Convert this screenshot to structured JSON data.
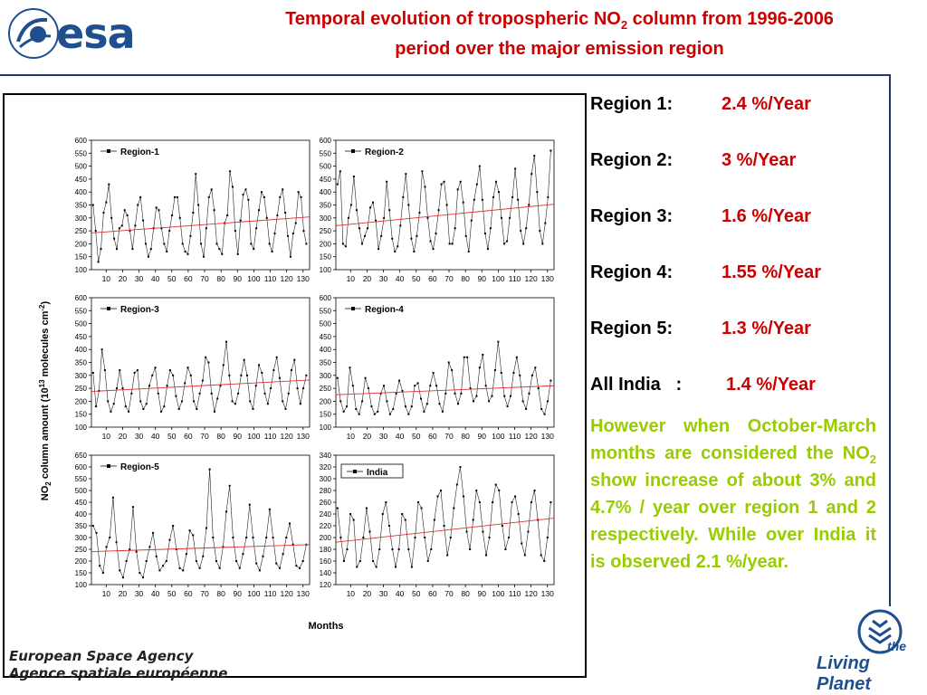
{
  "header": {
    "logo_text": "esa",
    "title_line1_a": "Temporal evolution of tropospheric NO",
    "title_line1_sub": "2",
    "title_line1_b": " column from 1996-2006",
    "title_line2": "period over the major emission region"
  },
  "figure": {
    "ylabel_a": "NO",
    "ylabel_sub": "2",
    "ylabel_b": " column amount (10",
    "ylabel_sup": "13",
    "ylabel_c": " molecules cm",
    "ylabel_sup2": "-2",
    "ylabel_d": ")",
    "xlabel": "Months"
  },
  "chart_data": [
    {
      "type": "line",
      "title": "",
      "legend": "Region-1",
      "x_ticks": [
        10,
        20,
        30,
        40,
        50,
        60,
        70,
        80,
        90,
        100,
        110,
        120,
        130
      ],
      "ylim": [
        100,
        600
      ],
      "y_ticks": [
        100,
        150,
        200,
        250,
        300,
        350,
        400,
        450,
        500,
        550,
        600
      ],
      "series": [
        {
          "name": "Region-1",
          "values": [
            350,
            250,
            130,
            180,
            320,
            360,
            430,
            300,
            220,
            180,
            260,
            270,
            330,
            310,
            250,
            180,
            270,
            350,
            380,
            290,
            200,
            150,
            180,
            260,
            340,
            330,
            260,
            200,
            170,
            250,
            310,
            380,
            380,
            300,
            200,
            170,
            160,
            230,
            320,
            470,
            350,
            200,
            150,
            260,
            380,
            410,
            330,
            200,
            180,
            160,
            280,
            310,
            480,
            420,
            250,
            160,
            290,
            390,
            410,
            370,
            200,
            180,
            260,
            330,
            400,
            380,
            300,
            200,
            170,
            240,
            310,
            380,
            410,
            320,
            230,
            150,
            240,
            280,
            400,
            380,
            250,
            200
          ]
        },
        {
          "name": "trend",
          "values": [
            242,
            304
          ]
        }
      ]
    },
    {
      "type": "line",
      "title": "",
      "legend": "Region-2",
      "x_ticks": [
        10,
        20,
        30,
        40,
        50,
        60,
        70,
        80,
        90,
        100,
        110,
        120,
        130
      ],
      "ylim": [
        100,
        600
      ],
      "y_ticks": [
        100,
        150,
        200,
        250,
        300,
        350,
        400,
        450,
        500,
        550,
        600
      ],
      "series": [
        {
          "name": "Region-2",
          "values": [
            430,
            480,
            200,
            190,
            300,
            350,
            460,
            330,
            260,
            200,
            230,
            260,
            340,
            360,
            290,
            180,
            230,
            300,
            440,
            330,
            220,
            170,
            190,
            270,
            380,
            470,
            350,
            220,
            170,
            230,
            320,
            480,
            420,
            300,
            210,
            180,
            240,
            330,
            430,
            440,
            350,
            200,
            200,
            260,
            410,
            440,
            360,
            230,
            170,
            290,
            370,
            430,
            500,
            370,
            240,
            180,
            260,
            380,
            440,
            400,
            300,
            200,
            210,
            300,
            380,
            490,
            370,
            250,
            200,
            260,
            350,
            470,
            540,
            400,
            250,
            200,
            280,
            380,
            560
          ]
        },
        {
          "name": "trend",
          "values": [
            270,
            353
          ]
        }
      ]
    },
    {
      "type": "line",
      "title": "",
      "legend": "Region-3",
      "x_ticks": [
        10,
        20,
        30,
        40,
        50,
        60,
        70,
        80,
        90,
        100,
        110,
        120,
        130
      ],
      "ylim": [
        100,
        600
      ],
      "y_ticks": [
        100,
        150,
        200,
        250,
        300,
        350,
        400,
        450,
        500,
        550,
        600
      ],
      "series": [
        {
          "name": "Region-3",
          "values": [
            310,
            180,
            240,
            400,
            320,
            200,
            160,
            190,
            250,
            320,
            250,
            180,
            160,
            230,
            310,
            320,
            200,
            170,
            190,
            260,
            300,
            330,
            230,
            160,
            180,
            260,
            320,
            300,
            220,
            170,
            200,
            270,
            330,
            300,
            200,
            170,
            230,
            280,
            370,
            350,
            230,
            160,
            210,
            260,
            340,
            430,
            300,
            200,
            190,
            230,
            300,
            360,
            300,
            200,
            170,
            260,
            340,
            310,
            230,
            190,
            250,
            320,
            370,
            290,
            200,
            170,
            230,
            320,
            360,
            250,
            190,
            250,
            300
          ]
        },
        {
          "name": "trend",
          "values": [
            238,
            282
          ]
        }
      ]
    },
    {
      "type": "line",
      "title": "",
      "legend": "Region-4",
      "x_ticks": [
        10,
        20,
        30,
        40,
        50,
        60,
        70,
        80,
        90,
        100,
        110,
        120,
        130
      ],
      "ylim": [
        100,
        600
      ],
      "y_ticks": [
        100,
        150,
        200,
        250,
        300,
        350,
        400,
        450,
        500,
        550,
        600
      ],
      "series": [
        {
          "name": "Region-4",
          "values": [
            290,
            200,
            160,
            180,
            330,
            260,
            170,
            150,
            200,
            290,
            250,
            180,
            150,
            160,
            230,
            260,
            200,
            150,
            170,
            230,
            280,
            240,
            180,
            150,
            180,
            260,
            270,
            210,
            160,
            190,
            260,
            310,
            260,
            190,
            160,
            230,
            350,
            320,
            230,
            190,
            230,
            370,
            370,
            250,
            200,
            220,
            330,
            380,
            260,
            200,
            220,
            320,
            430,
            310,
            220,
            180,
            220,
            310,
            370,
            300,
            200,
            170,
            230,
            300,
            330,
            250,
            170,
            150,
            200,
            280
          ]
        },
        {
          "name": "trend",
          "values": [
            225,
            260
          ]
        }
      ]
    },
    {
      "type": "line",
      "title": "",
      "legend": "Region-5",
      "x_ticks": [
        10,
        20,
        30,
        40,
        50,
        60,
        70,
        80,
        90,
        100,
        110,
        120,
        130
      ],
      "ylim": [
        100,
        650
      ],
      "y_ticks": [
        100,
        150,
        200,
        250,
        300,
        350,
        400,
        450,
        500,
        550,
        600,
        650
      ],
      "series": [
        {
          "name": "Region-5",
          "values": [
            350,
            320,
            180,
            150,
            260,
            300,
            470,
            280,
            160,
            130,
            200,
            250,
            430,
            240,
            150,
            130,
            200,
            260,
            320,
            220,
            160,
            180,
            200,
            290,
            350,
            250,
            170,
            160,
            230,
            330,
            310,
            200,
            170,
            220,
            340,
            590,
            300,
            200,
            170,
            260,
            410,
            520,
            300,
            200,
            170,
            230,
            300,
            440,
            300,
            190,
            160,
            220,
            300,
            420,
            300,
            190,
            170,
            230,
            300,
            360,
            270,
            180,
            170,
            200,
            270
          ]
        },
        {
          "name": "trend",
          "values": [
            240,
            270
          ]
        }
      ]
    },
    {
      "type": "line",
      "title": "",
      "legend": "India",
      "x_ticks": [
        10,
        20,
        30,
        40,
        50,
        60,
        70,
        80,
        90,
        100,
        110,
        120,
        130
      ],
      "ylim": [
        120,
        340
      ],
      "y_ticks": [
        120,
        140,
        160,
        180,
        200,
        220,
        240,
        260,
        280,
        300,
        320,
        340
      ],
      "series": [
        {
          "name": "India",
          "values": [
            250,
            200,
            160,
            180,
            240,
            230,
            150,
            160,
            200,
            250,
            210,
            160,
            150,
            180,
            240,
            260,
            220,
            180,
            150,
            180,
            240,
            230,
            180,
            150,
            200,
            260,
            250,
            200,
            160,
            180,
            230,
            270,
            280,
            220,
            170,
            200,
            250,
            290,
            320,
            270,
            210,
            180,
            230,
            280,
            260,
            210,
            170,
            200,
            260,
            290,
            280,
            220,
            180,
            200,
            260,
            270,
            240,
            190,
            170,
            210,
            260,
            280,
            230,
            170,
            160,
            200,
            260
          ]
        },
        {
          "name": "trend",
          "values": [
            192,
            233
          ]
        }
      ]
    }
  ],
  "stats": [
    {
      "label": "Region 1:",
      "value": "2.4 %/Year"
    },
    {
      "label": "Region 2:",
      "value": "3 %/Year"
    },
    {
      "label": "Region 3:",
      "value": "1.6 %/Year"
    },
    {
      "label": "Region 4:",
      "value": "1.55 %/Year"
    },
    {
      "label": "Region 5:",
      "value": "1.3 %/Year"
    },
    {
      "label": "All India   :",
      "value": "1.4 %/Year"
    }
  ],
  "note": {
    "part1": "However when October-March months are considered the NO",
    "sub": "2",
    "part2": " show increase of about 3% and 4.7% / year over region 1 and 2 respectively. While over India it is observed 2.1 %/year."
  },
  "footer": {
    "agency_en": "European Space Agency",
    "agency_fr": "Agence spatiale européenne",
    "living_the": "the",
    "living_planet": "Living Planet"
  },
  "colors": {
    "title": "#cc0000",
    "value": "#cc0000",
    "note": "#99cc00",
    "trend": "#e03030",
    "brand": "#1f4f8f"
  }
}
